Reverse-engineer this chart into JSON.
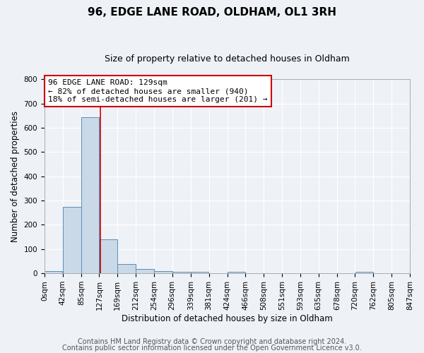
{
  "title": "96, EDGE LANE ROAD, OLDHAM, OL1 3RH",
  "subtitle": "Size of property relative to detached houses in Oldham",
  "xlabel": "Distribution of detached houses by size in Oldham",
  "ylabel": "Number of detached properties",
  "footnote1": "Contains HM Land Registry data © Crown copyright and database right 2024.",
  "footnote2": "Contains public sector information licensed under the Open Government Licence v3.0.",
  "property_label": "96 EDGE LANE ROAD: 129sqm",
  "annotation_line1": "← 82% of detached houses are smaller (940)",
  "annotation_line2": "18% of semi-detached houses are larger (201) →",
  "bin_edges": [
    0,
    42,
    85,
    127,
    169,
    212,
    254,
    296,
    339,
    381,
    424,
    466,
    508,
    551,
    593,
    635,
    678,
    720,
    762,
    805,
    847
  ],
  "bar_heights": [
    8,
    275,
    645,
    140,
    38,
    18,
    10,
    5,
    5,
    0,
    5,
    0,
    0,
    0,
    0,
    0,
    0,
    5,
    0,
    0
  ],
  "bar_color": "#c9d9e8",
  "bar_edge_color": "#5b8db8",
  "vline_x": 129,
  "vline_color": "#cc0000",
  "annotation_box_color": "#cc0000",
  "ylim": [
    0,
    800
  ],
  "yticks": [
    0,
    100,
    200,
    300,
    400,
    500,
    600,
    700,
    800
  ],
  "background_color": "#eef2f7",
  "grid_color": "#ffffff",
  "title_fontsize": 11,
  "subtitle_fontsize": 9,
  "axis_label_fontsize": 8.5,
  "tick_fontsize": 7.5,
  "annotation_fontsize": 8,
  "footnote_fontsize": 7
}
